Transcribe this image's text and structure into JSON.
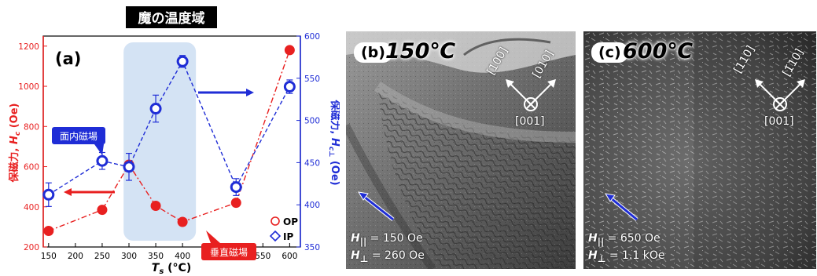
{
  "chart_data": {
    "type": "scatter",
    "title": "魔の温度域",
    "panel_label": "(a)",
    "xlabel": "Ts (°C)",
    "xlabel_main": "T",
    "xlabel_sub": "s",
    "xlabel_unit": " (°C)",
    "ylabel_left": "保磁力, Hc (Oe)",
    "ylabel_left_main": "保磁力, ",
    "ylabel_left_var": "H",
    "ylabel_left_sub": "c",
    "ylabel_left_unit": " (Oe)",
    "ylabel_right": "保磁力, Hc⊥ (Oe)",
    "ylabel_right_main": "保磁力, ",
    "ylabel_right_var": "H",
    "ylabel_right_sub": "c⊥",
    "ylabel_right_unit": " (Oe)",
    "xlim": [
      140,
      620
    ],
    "ylim_left": [
      200,
      1250
    ],
    "ylim_right": [
      350,
      600
    ],
    "x_ticks": [
      150,
      200,
      250,
      300,
      350,
      400,
      450,
      500,
      550,
      600
    ],
    "y_left_ticks": [
      200,
      400,
      600,
      800,
      1000,
      1200
    ],
    "y_right_ticks": [
      350,
      400,
      450,
      500,
      550,
      600
    ],
    "highlight_range": [
      290,
      425
    ],
    "series": [
      {
        "name": "OP",
        "axis": "left",
        "color": "#e82020",
        "marker": "filled-circle",
        "line": "dash-dot",
        "x": [
          150,
          250,
          300,
          350,
          400,
          500,
          600
        ],
        "y": [
          280,
          385,
          610,
          405,
          325,
          420,
          1180
        ]
      },
      {
        "name": "IP",
        "axis": "right",
        "color": "#1f2dd6",
        "marker": "open-circle",
        "line": "dashed",
        "x": [
          150,
          250,
          300,
          350,
          400,
          500,
          600
        ],
        "y": [
          412,
          452,
          445,
          514,
          570,
          421,
          540
        ],
        "err": [
          14,
          10,
          16,
          16,
          7,
          10,
          8
        ]
      }
    ],
    "legend": {
      "placement": "bottom-right",
      "entries": [
        "OP",
        "IP"
      ]
    },
    "annotations": {
      "in_plane": "面内磁場",
      "perpendicular": "垂直磁場"
    }
  },
  "images": [
    {
      "label": "(b)",
      "temperature": "150℃",
      "directions": [
        "[100]",
        "[010]",
        "[001]"
      ],
      "h_par_main": "H",
      "h_par_sub": "||",
      "h_par_value": " = 150 Oe",
      "h_perp_main": "H",
      "h_perp_sub": "⊥",
      "h_perp_value": " = 260 Oe"
    },
    {
      "label": "(c)",
      "temperature": "600℃",
      "directions": [
        "[110]",
        "[1̄10]",
        "[001]"
      ],
      "h_par_main": "H",
      "h_par_sub": "||",
      "h_par_value": " = 650 Oe",
      "h_perp_main": "H",
      "h_perp_sub": "⊥",
      "h_perp_value": " = 1.1 kOe"
    }
  ]
}
